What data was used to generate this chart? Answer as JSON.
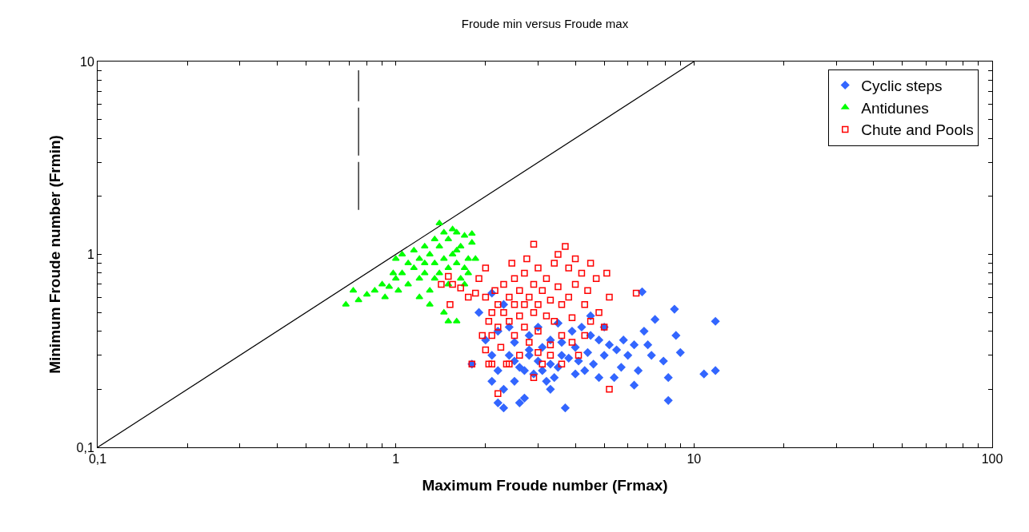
{
  "chart_data": {
    "type": "scatter",
    "title": "Froude min versus Froude max",
    "xlabel": "Maximum Froude number (Frmax)",
    "ylabel": "Minimum Froude number (Frmin)",
    "log": "xy",
    "grid": false,
    "legend": "top right",
    "xlim": [
      0.1,
      100
    ],
    "ylim": [
      0.1,
      10
    ],
    "xticks": [
      {
        "value": 0.1,
        "label": "0,1"
      },
      {
        "value": 0.2,
        "label": null
      },
      {
        "value": 0.3,
        "label": null
      },
      {
        "value": 0.4,
        "label": null
      },
      {
        "value": 0.5,
        "label": null
      },
      {
        "value": 0.6,
        "label": null
      },
      {
        "value": 0.7,
        "label": null
      },
      {
        "value": 0.8,
        "label": null
      },
      {
        "value": 0.9,
        "label": null
      },
      1,
      {
        "value": 2,
        "label": null
      },
      {
        "value": 3,
        "label": null
      },
      {
        "value": 4,
        "label": null
      },
      {
        "value": 5,
        "label": null
      },
      {
        "value": 6,
        "label": null
      },
      {
        "value": 7,
        "label": null
      },
      {
        "value": 8,
        "label": null
      },
      {
        "value": 9,
        "label": null
      },
      10,
      {
        "value": 20,
        "label": null
      },
      {
        "value": 30,
        "label": null
      },
      {
        "value": 40,
        "label": null
      },
      {
        "value": 50,
        "label": null
      },
      {
        "value": 60,
        "label": null
      },
      {
        "value": 70,
        "label": null
      },
      {
        "value": 80,
        "label": null
      },
      {
        "value": 90,
        "label": null
      },
      100
    ],
    "yticks": [
      {
        "value": 0.1,
        "label": "0,1"
      },
      {
        "value": 0.2,
        "label": null
      },
      {
        "value": 0.3,
        "label": null
      },
      {
        "value": 0.4,
        "label": null
      },
      {
        "value": 0.5,
        "label": null
      },
      {
        "value": 0.6,
        "label": null
      },
      {
        "value": 0.7,
        "label": null
      },
      {
        "value": 0.8,
        "label": null
      },
      {
        "value": 0.9,
        "label": null
      },
      1,
      {
        "value": 2,
        "label": null
      },
      {
        "value": 3,
        "label": null
      },
      {
        "value": 4,
        "label": null
      },
      {
        "value": 5,
        "label": null
      },
      {
        "value": 6,
        "label": null
      },
      {
        "value": 7,
        "label": null
      },
      {
        "value": 8,
        "label": null
      },
      {
        "value": 9,
        "label": null
      },
      10
    ],
    "series": [
      {
        "type": "line",
        "color": "#000000",
        "line_style": "solid",
        "marker": "none",
        "x": [
          0.1,
          10
        ],
        "values": [
          0.1,
          10
        ]
      },
      {
        "type": "line",
        "color": "#000000",
        "line_style": "dashed",
        "marker": "none",
        "x": [
          0.75,
          0.75
        ],
        "values": [
          1.7,
          9
        ]
      },
      {
        "name": "Cyclic steps",
        "color": "#3366ff",
        "marker": "diamond",
        "x": [
          6.7,
          11.8,
          8.6,
          8.7,
          9,
          10.8,
          11.8,
          8.2,
          7.9,
          8.2,
          7.4,
          7,
          6.3,
          6,
          5.7,
          6.3,
          5.4,
          5.2,
          5,
          4.8,
          4.6,
          4.4,
          4.3,
          4.5,
          4.2,
          4,
          4.1,
          3.8,
          3.6,
          3.5,
          3.4,
          3.7,
          3.3,
          3.1,
          3.2,
          3,
          2.9,
          2.8,
          2.7,
          2.6,
          2.5,
          2.4,
          2.3,
          2.3,
          2.2,
          2.1,
          2.2,
          2.1,
          2,
          2.2,
          2.4,
          1.9,
          2.3,
          2.1,
          1.8,
          2.5,
          2.8,
          3,
          3.3,
          3.5,
          3.9,
          4.5,
          5,
          5.5,
          6.5,
          6.8,
          7.2,
          2.6,
          3.3,
          4,
          2.8,
          3.6,
          4.8,
          5.8,
          2.5,
          2.7,
          3.1
        ],
        "values": [
          0.64,
          0.45,
          0.52,
          0.38,
          0.31,
          0.24,
          0.25,
          0.175,
          0.28,
          0.23,
          0.46,
          0.34,
          0.34,
          0.3,
          0.26,
          0.21,
          0.23,
          0.34,
          0.3,
          0.36,
          0.27,
          0.31,
          0.25,
          0.48,
          0.42,
          0.33,
          0.28,
          0.29,
          0.3,
          0.26,
          0.23,
          0.16,
          0.27,
          0.33,
          0.22,
          0.28,
          0.24,
          0.3,
          0.18,
          0.26,
          0.22,
          0.3,
          0.2,
          0.16,
          0.25,
          0.22,
          0.17,
          0.3,
          0.36,
          0.4,
          0.42,
          0.5,
          0.55,
          0.63,
          0.27,
          0.35,
          0.38,
          0.42,
          0.36,
          0.44,
          0.4,
          0.38,
          0.42,
          0.32,
          0.25,
          0.4,
          0.3,
          0.17,
          0.2,
          0.24,
          0.32,
          0.35,
          0.23,
          0.36,
          0.28,
          0.25,
          0.25
        ]
      },
      {
        "name": "Antidunes",
        "color": "#00ff00",
        "marker": "triangle",
        "x": [
          0.68,
          0.72,
          0.75,
          0.8,
          0.85,
          0.9,
          0.92,
          0.95,
          1,
          1.02,
          1.05,
          1.05,
          1.1,
          1.1,
          1.15,
          1.15,
          1.2,
          1.2,
          1.25,
          1.25,
          1.3,
          1.3,
          1.35,
          1.35,
          1.4,
          1.4,
          1.4,
          1.45,
          1.45,
          1.5,
          1.5,
          1.5,
          1.55,
          1.55,
          1.6,
          1.6,
          1.65,
          1.65,
          1.7,
          1.7,
          1.75,
          1.8,
          1.8,
          1.85,
          1.2,
          1.3,
          1.45,
          1.6,
          1.5,
          1.7,
          1,
          1.35,
          1.25,
          0.98,
          1.6,
          1.75
        ],
        "values": [
          0.55,
          0.65,
          0.58,
          0.62,
          0.65,
          0.7,
          0.6,
          0.68,
          0.75,
          0.65,
          0.8,
          1,
          0.9,
          0.7,
          1.05,
          0.85,
          0.95,
          0.75,
          1.1,
          0.8,
          1,
          0.65,
          1.2,
          0.9,
          1.45,
          1.1,
          0.8,
          1.3,
          0.95,
          1.2,
          0.85,
          0.7,
          1.35,
          1,
          1.3,
          0.9,
          1.1,
          0.75,
          1.25,
          0.85,
          0.95,
          1.28,
          1.15,
          0.95,
          0.6,
          0.55,
          0.5,
          0.45,
          0.45,
          0.7,
          0.95,
          0.75,
          0.9,
          0.8,
          1.05,
          0.8
        ]
      },
      {
        "name": "Chute and Pools",
        "color": "#ff0000",
        "marker": "square",
        "x": [
          1.42,
          1.5,
          1.55,
          1.52,
          1.75,
          1.8,
          1.85,
          1.9,
          2,
          2,
          2.05,
          2.1,
          2.1,
          2.15,
          2.2,
          2.2,
          2.25,
          2.3,
          2.3,
          2.35,
          2.4,
          2.4,
          2.45,
          2.5,
          2.5,
          2.5,
          2.6,
          2.6,
          2.7,
          2.7,
          2.7,
          2.8,
          2.8,
          2.9,
          2.9,
          2.9,
          3,
          3,
          3,
          3.1,
          3.2,
          3.2,
          3.3,
          3.3,
          3.4,
          3.4,
          3.5,
          3.5,
          3.6,
          3.6,
          3.7,
          3.8,
          3.8,
          3.9,
          4,
          4,
          4.1,
          4.2,
          4.3,
          4.4,
          4.5,
          4.7,
          4.8,
          5,
          5.1,
          5.2,
          5.2,
          6.4,
          2.1,
          2.2,
          2.4,
          2.6,
          3.1,
          3.6,
          3,
          1.95,
          2,
          3.9,
          4.3,
          2.9,
          3.3,
          4.5,
          2.75,
          1.65,
          2.05
        ],
        "values": [
          0.7,
          0.77,
          0.7,
          0.55,
          0.6,
          0.27,
          0.63,
          0.75,
          0.85,
          0.6,
          0.45,
          0.5,
          0.38,
          0.65,
          0.55,
          0.42,
          0.33,
          0.7,
          0.5,
          0.27,
          0.6,
          0.45,
          0.9,
          0.75,
          0.55,
          0.38,
          0.65,
          0.48,
          0.8,
          0.55,
          0.42,
          0.6,
          0.35,
          1.13,
          0.7,
          0.5,
          0.85,
          0.55,
          0.4,
          0.65,
          0.75,
          0.48,
          0.58,
          0.3,
          0.9,
          0.45,
          1,
          0.68,
          0.55,
          0.38,
          1.1,
          0.85,
          0.6,
          0.47,
          0.95,
          0.7,
          0.3,
          0.8,
          0.55,
          0.65,
          0.9,
          0.75,
          0.5,
          0.42,
          0.8,
          0.2,
          0.6,
          0.63,
          0.27,
          0.19,
          0.27,
          0.3,
          0.27,
          0.27,
          0.31,
          0.38,
          0.32,
          0.35,
          0.38,
          0.23,
          0.34,
          0.45,
          0.95,
          0.67,
          0.27
        ]
      }
    ]
  }
}
